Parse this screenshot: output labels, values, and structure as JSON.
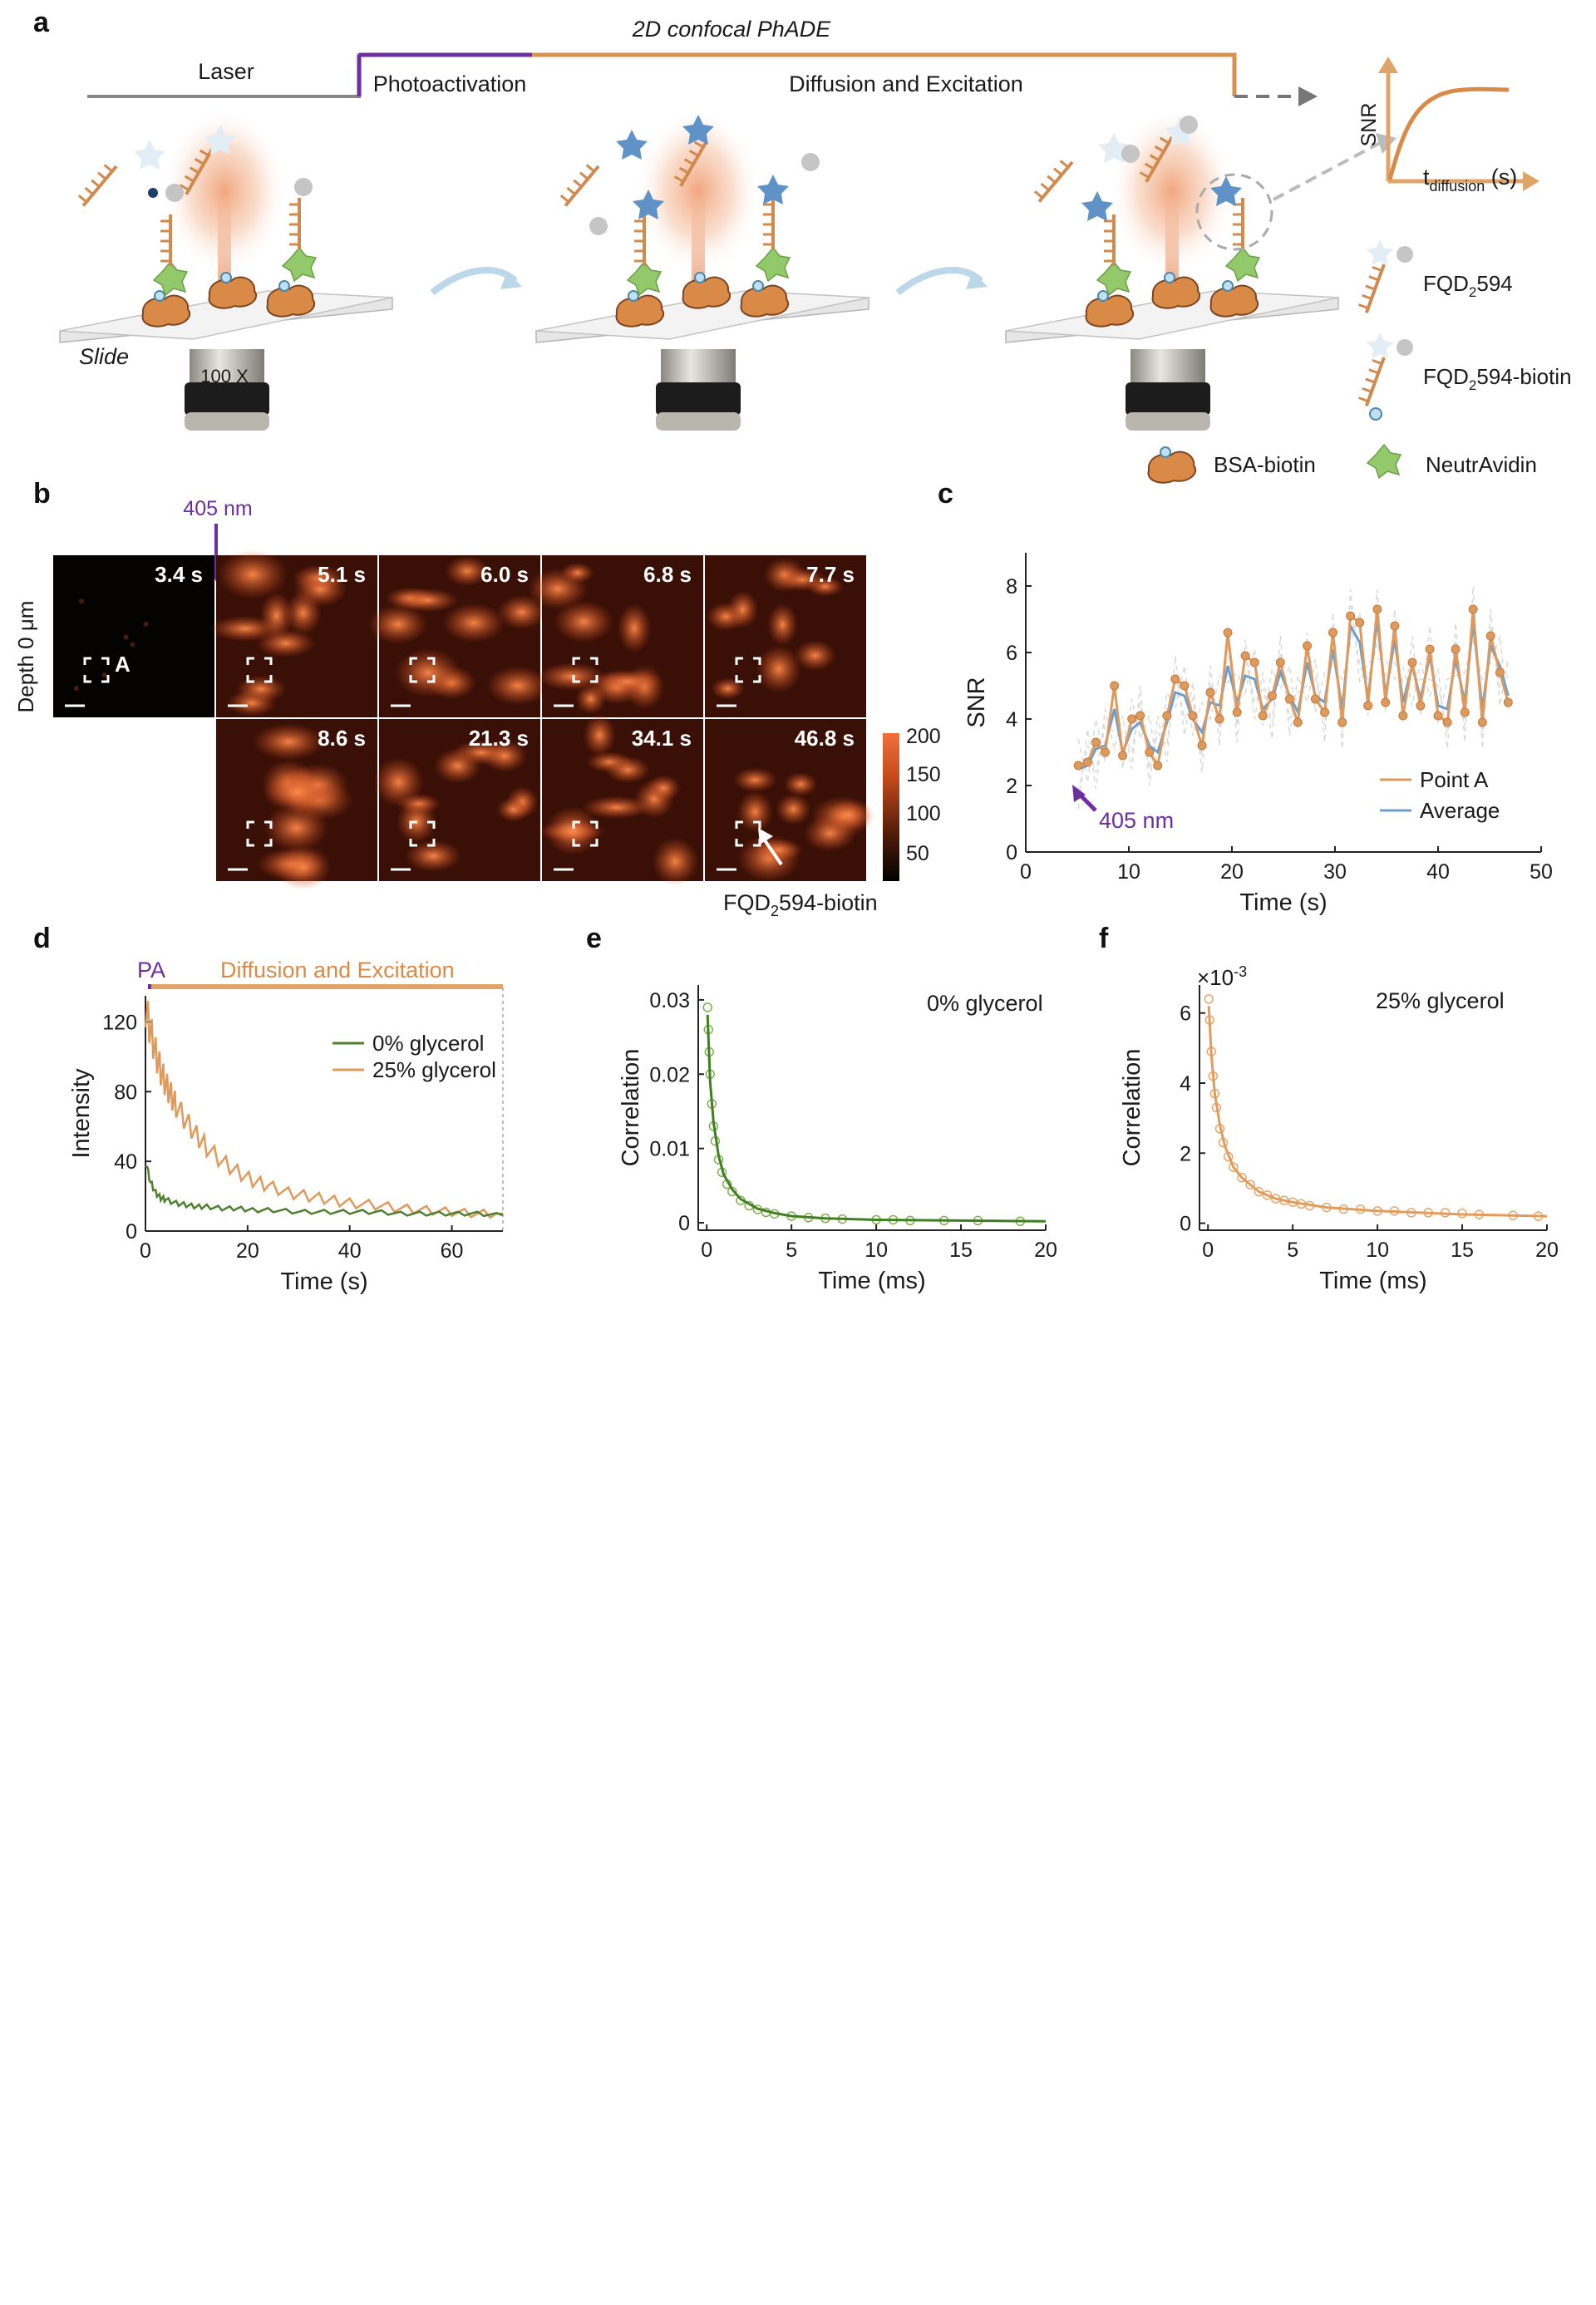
{
  "panel_a": {
    "label": "a",
    "title": "2D confocal PhADE",
    "laser": "Laser",
    "photoactivation": "Photoactivation",
    "diffusion_excitation": "Diffusion and Excitation",
    "slide": "Slide",
    "objective": "100 X",
    "inset_y": "SNR",
    "inset_x_main": "t",
    "inset_x_sub": "diffusion",
    "inset_x_unit": " (s)",
    "legend": {
      "fqd_a": "FQD",
      "fqd_b": "594",
      "fqdb_a": "FQD",
      "fqdb_b": "594-biotin",
      "sub2": "2",
      "bsa": "BSA-biotin",
      "neutravidin": "NeutrAvidin"
    }
  },
  "panel_b": {
    "label": "b",
    "laser_label": "405 nm",
    "depth": "Depth 0 μm",
    "point": "A",
    "times": [
      "3.4 s",
      "5.1 s",
      "6.0 s",
      "6.8 s",
      "7.7 s",
      "8.6 s",
      "21.3 s",
      "34.1 s",
      "46.8 s"
    ],
    "colorbar_ticks": [
      "200",
      "150",
      "100",
      "50"
    ],
    "arrow_a": "FQD",
    "arrow_sub": "2",
    "arrow_b": "594-biotin"
  },
  "panel_c": {
    "label": "c",
    "annotation": "405 nm"
  },
  "panel_d": {
    "label": "d",
    "pa": "PA",
    "band": "Diffusion and Excitation"
  },
  "panel_e": {
    "label": "e",
    "annotation": "0% glycerol"
  },
  "panel_f": {
    "label": "f",
    "annotation": "25% glycerol",
    "exponent": "×10",
    "exponent_power": "-3"
  },
  "colors": {
    "orange": "#de9a5c",
    "blue": "#6a9fd0",
    "green": "#4f7f2f",
    "light_green": "#a9cd7e",
    "purple": "#6b2fa0",
    "gray_line": "#8c8c8c"
  },
  "chart_data": [
    {
      "panel": "c",
      "type": "line",
      "xlabel": "Time (s)",
      "ylabel": "SNR",
      "xlim": [
        0,
        50
      ],
      "ylim": [
        0,
        9
      ],
      "xticks": [
        0,
        10,
        20,
        30,
        40,
        50
      ],
      "yticks": [
        0,
        2,
        4,
        6,
        8
      ],
      "legend_position": "bottom-right",
      "series": [
        {
          "name": "Point A",
          "x": [
            5.1,
            6.0,
            6.8,
            7.7,
            8.6,
            9.4,
            10.3,
            11.1,
            12.0,
            12.8,
            13.7,
            14.5,
            15.4,
            16.2,
            17.1,
            17.9,
            18.8,
            19.6,
            20.5,
            21.3,
            22.2,
            23.0,
            23.9,
            24.7,
            25.6,
            26.4,
            27.3,
            28.1,
            29.0,
            29.8,
            30.7,
            31.5,
            32.4,
            33.2,
            34.1,
            34.9,
            35.8,
            36.6,
            37.5,
            38.3,
            39.2,
            40.0,
            40.9,
            41.7,
            42.6,
            43.4,
            44.3,
            45.1,
            46.0,
            46.8
          ],
          "y": [
            2.6,
            2.7,
            3.3,
            3.0,
            5.0,
            2.9,
            4.0,
            4.1,
            3.0,
            2.6,
            4.1,
            5.2,
            5.0,
            4.1,
            3.2,
            4.8,
            4.0,
            6.6,
            4.2,
            5.9,
            5.7,
            4.1,
            4.7,
            5.7,
            4.6,
            3.9,
            6.2,
            4.6,
            4.2,
            6.6,
            3.9,
            7.1,
            6.9,
            4.4,
            7.3,
            4.5,
            6.8,
            4.1,
            5.7,
            4.4,
            6.1,
            4.1,
            3.9,
            6.1,
            4.2,
            7.3,
            3.9,
            6.5,
            5.4,
            4.5
          ]
        },
        {
          "name": "Average",
          "x": [
            5.1,
            6.0,
            6.8,
            7.7,
            8.6,
            9.4,
            10.3,
            11.1,
            12.0,
            12.8,
            13.7,
            14.5,
            15.4,
            16.2,
            17.1,
            17.9,
            18.8,
            19.6,
            20.5,
            21.3,
            22.2,
            23.0,
            23.9,
            24.7,
            25.6,
            26.4,
            27.3,
            28.1,
            29.0,
            29.8,
            30.7,
            31.5,
            32.4,
            33.2,
            34.1,
            34.9,
            35.8,
            36.6,
            37.5,
            38.3,
            39.2,
            40.0,
            40.9,
            41.7,
            42.6,
            43.4,
            44.3,
            45.1,
            46.0,
            46.8
          ],
          "y": [
            2.5,
            2.6,
            3.1,
            3.2,
            4.3,
            3.0,
            3.7,
            3.9,
            3.2,
            3.0,
            3.9,
            4.8,
            4.7,
            4.0,
            3.6,
            4.5,
            4.4,
            5.6,
            4.5,
            5.3,
            5.2,
            4.3,
            4.6,
            5.4,
            4.7,
            4.2,
            5.7,
            4.7,
            4.5,
            6.1,
            4.3,
            6.8,
            6.3,
            4.6,
            7.0,
            4.7,
            6.4,
            4.5,
            5.6,
            4.6,
            5.9,
            4.4,
            4.3,
            5.8,
            4.5,
            6.9,
            4.3,
            6.2,
            5.6,
            4.7
          ]
        }
      ]
    },
    {
      "panel": "d",
      "type": "line",
      "xlabel": "Time (s)",
      "ylabel": "Intensity",
      "xlim": [
        0,
        70
      ],
      "ylim": [
        0,
        135
      ],
      "xticks": [
        0,
        20,
        40,
        60
      ],
      "yticks": [
        0,
        40,
        80,
        120
      ],
      "legend_position": "top-right",
      "series": [
        {
          "name": "0% glycerol",
          "x": [
            0,
            1,
            2,
            3,
            4,
            6,
            8,
            10,
            12,
            15,
            18,
            21,
            25,
            30,
            35,
            40,
            45,
            50,
            55,
            60,
            65,
            70
          ],
          "y": [
            40,
            28,
            22,
            19,
            18,
            16,
            15,
            14,
            14,
            13,
            13,
            12,
            12,
            11,
            11,
            11,
            11,
            10,
            10,
            10,
            10,
            9
          ]
        },
        {
          "name": "25% glycerol",
          "x": [
            0,
            1,
            2,
            3,
            4,
            5,
            6,
            8,
            10,
            12,
            15,
            18,
            21,
            24,
            28,
            32,
            36,
            40,
            45,
            50,
            55,
            60,
            65,
            70
          ],
          "y": [
            128,
            115,
            102,
            92,
            84,
            78,
            72,
            63,
            55,
            48,
            40,
            34,
            29,
            26,
            22,
            20,
            18,
            16,
            15,
            13,
            12,
            11,
            10,
            10
          ]
        }
      ]
    },
    {
      "panel": "e",
      "type": "scatter",
      "xlabel": "Time (ms)",
      "ylabel": "Correlation",
      "xlim": [
        -0.5,
        20
      ],
      "ylim": [
        -0.001,
        0.032
      ],
      "xticks": [
        0,
        5,
        10,
        15,
        20
      ],
      "yticks": [
        0,
        0.01,
        0.02,
        0.03
      ],
      "series": [
        {
          "name": "data",
          "x": [
            0.05,
            0.1,
            0.15,
            0.2,
            0.3,
            0.4,
            0.5,
            0.7,
            0.9,
            1.2,
            1.5,
            2.0,
            2.5,
            3.0,
            3.5,
            4.0,
            5.0,
            6.0,
            7.0,
            8.0,
            10.0,
            11.0,
            12.0,
            14.0,
            16.0,
            18.5
          ],
          "y": [
            0.029,
            0.026,
            0.023,
            0.02,
            0.016,
            0.013,
            0.011,
            0.0085,
            0.0068,
            0.0052,
            0.0042,
            0.003,
            0.0023,
            0.0018,
            0.0014,
            0.0012,
            0.0009,
            0.0007,
            0.0006,
            0.0005,
            0.0004,
            0.0004,
            0.0003,
            0.0003,
            0.0003,
            0.0002
          ]
        },
        {
          "name": "fit",
          "x": [
            0.05,
            0.2,
            0.4,
            0.7,
            1.0,
            1.5,
            2.0,
            3.0,
            4.0,
            5.0,
            7.0,
            10.0,
            15.0,
            20.0
          ],
          "y": [
            0.028,
            0.019,
            0.0135,
            0.009,
            0.0065,
            0.0045,
            0.0032,
            0.0019,
            0.0013,
            0.0009,
            0.0006,
            0.0004,
            0.0003,
            0.0002
          ]
        }
      ]
    },
    {
      "panel": "f",
      "type": "scatter",
      "xlabel": "Time (ms)",
      "ylabel": "Correlation",
      "xlim": [
        -0.5,
        20
      ],
      "ylim": [
        -0.0002,
        0.0068
      ],
      "xticks": [
        0,
        5,
        10,
        15,
        20
      ],
      "yticks": [
        0,
        0.002,
        0.004,
        0.006
      ],
      "ytick_labels": [
        "0",
        "2",
        "4",
        "6"
      ],
      "series": [
        {
          "name": "data",
          "x": [
            0.05,
            0.1,
            0.2,
            0.3,
            0.4,
            0.5,
            0.7,
            0.9,
            1.2,
            1.5,
            2.0,
            2.5,
            3.0,
            3.5,
            4.0,
            4.5,
            5.0,
            5.5,
            6.0,
            7.0,
            8.0,
            9.0,
            10.0,
            11.0,
            12.0,
            13.0,
            14.0,
            15.0,
            16.0,
            18.0,
            19.5
          ],
          "y": [
            0.0064,
            0.0058,
            0.0049,
            0.0042,
            0.0037,
            0.0033,
            0.0027,
            0.0023,
            0.0019,
            0.0016,
            0.0013,
            0.0011,
            0.0009,
            0.0008,
            0.0007,
            0.00065,
            0.0006,
            0.00055,
            0.0005,
            0.00045,
            0.0004,
            0.0004,
            0.00035,
            0.00035,
            0.0003,
            0.0003,
            0.0003,
            0.00028,
            0.00025,
            0.00022,
            0.0002
          ]
        },
        {
          "name": "fit",
          "x": [
            0.05,
            0.2,
            0.4,
            0.7,
            1.0,
            1.5,
            2.0,
            3.0,
            4.0,
            5.0,
            7.0,
            10.0,
            15.0,
            20.0
          ],
          "y": [
            0.0062,
            0.0048,
            0.0037,
            0.0028,
            0.0022,
            0.0016,
            0.0013,
            0.0009,
            0.0007,
            0.0006,
            0.00045,
            0.00035,
            0.00025,
            0.0002
          ]
        }
      ]
    }
  ]
}
